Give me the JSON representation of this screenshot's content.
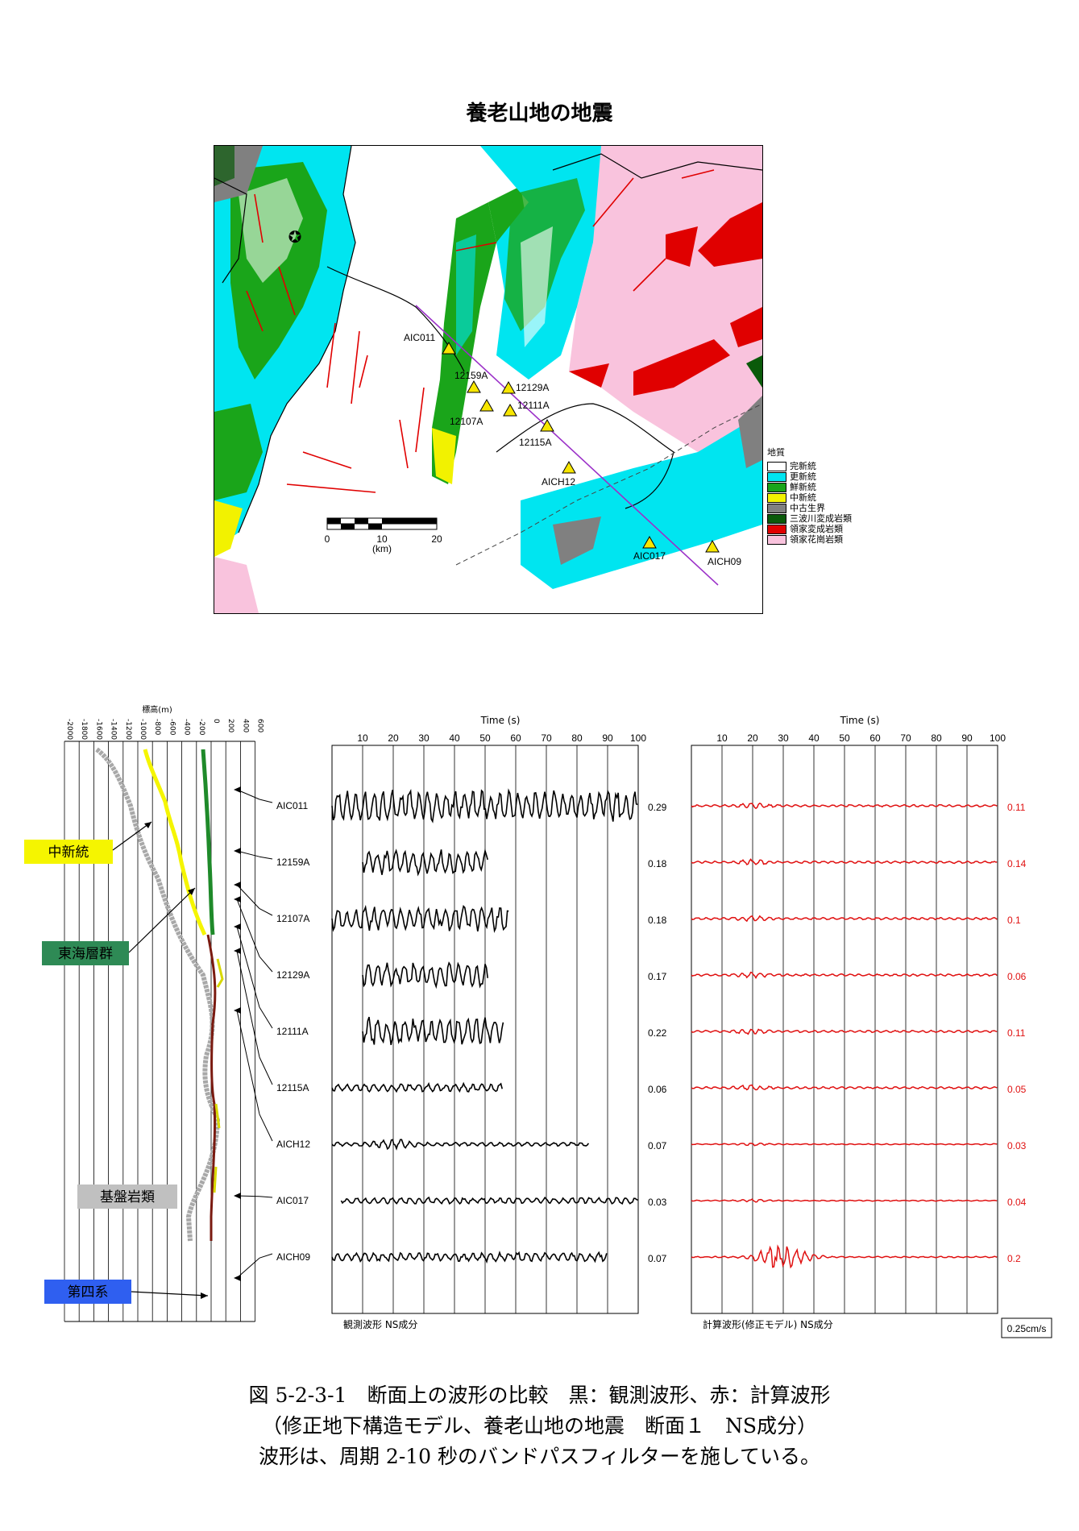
{
  "map": {
    "title": "養老山地の地震",
    "stations": [
      {
        "label": "AIC011"
      },
      {
        "label": "12159A"
      },
      {
        "label": "12129A"
      },
      {
        "label": "12111A"
      },
      {
        "label": "12107A"
      },
      {
        "label": "12115A"
      },
      {
        "label": "AICH12"
      },
      {
        "label": "AIC017"
      },
      {
        "label": "AICH09"
      }
    ],
    "scale": {
      "ticks": [
        "0",
        "10",
        "20"
      ],
      "unit": "(km)"
    },
    "legend": {
      "title": "地質",
      "items": [
        {
          "label": "完新統",
          "color": "#ffffff"
        },
        {
          "label": "更新統",
          "color": "#00e5f0"
        },
        {
          "label": "鮮新統",
          "color": "#1aa51a"
        },
        {
          "label": "中新統",
          "color": "#f2f200"
        },
        {
          "label": "中古生界",
          "color": "#808080"
        },
        {
          "label": "三波川変成岩類",
          "color": "#0a5a0a"
        },
        {
          "label": "領家変成岩類",
          "color": "#e00000"
        },
        {
          "label": "領家花崗岩類",
          "color": "#f9c3dd"
        }
      ]
    }
  },
  "profile": {
    "axis_title": "標高(m)",
    "ticks": [
      "-2000",
      "-1800",
      "-1600",
      "-1400",
      "-1200",
      "-1000",
      "-800",
      "-600",
      "-400",
      "-200",
      "0",
      "200",
      "400",
      "600"
    ],
    "layers": [
      {
        "label": "中新統",
        "color": "#f5f500"
      },
      {
        "label": "東海層群",
        "color": "#2e8a55"
      },
      {
        "label": "基盤岩類",
        "color": "#c0c0c0"
      },
      {
        "label": "第四系",
        "color": "#2f5ff0"
      }
    ]
  },
  "chart_data": [
    {
      "type": "line",
      "xlabel": "Time (s)",
      "xticks": [
        10,
        20,
        30,
        40,
        50,
        60,
        70,
        80,
        90,
        100
      ],
      "xlim": [
        0,
        100
      ],
      "caption": "観測波形 NS成分",
      "series": [
        {
          "name": "AIC011",
          "amplitude": "0.29",
          "t_start": 0,
          "t_end": 100
        },
        {
          "name": "12159A",
          "amplitude": "0.18",
          "t_start": 10,
          "t_end": 51
        },
        {
          "name": "12107A",
          "amplitude": "0.18",
          "t_start": 0,
          "t_end": 58
        },
        {
          "name": "12129A",
          "amplitude": "0.17",
          "t_start": 10,
          "t_end": 51
        },
        {
          "name": "12111A",
          "amplitude": "0.22",
          "t_start": 10,
          "t_end": 56
        },
        {
          "name": "12115A",
          "amplitude": "0.06",
          "t_start": 0,
          "t_end": 56
        },
        {
          "name": "AICH12",
          "amplitude": "0.07",
          "t_start": 0,
          "t_end": 84
        },
        {
          "name": "AIC017",
          "amplitude": "0.03",
          "t_start": 3,
          "t_end": 100
        },
        {
          "name": "AICH09",
          "amplitude": "0.07",
          "t_start": 0,
          "t_end": 90
        }
      ]
    },
    {
      "type": "line",
      "xlabel": "Time (s)",
      "xticks": [
        10,
        20,
        30,
        40,
        50,
        60,
        70,
        80,
        90,
        100
      ],
      "xlim": [
        0,
        100
      ],
      "caption": "計算波形(修正モデル) NS成分",
      "series": [
        {
          "name": "AIC011",
          "amplitude": "0.11"
        },
        {
          "name": "12159A",
          "amplitude": "0.14"
        },
        {
          "name": "12107A",
          "amplitude": "0.1"
        },
        {
          "name": "12129A",
          "amplitude": "0.06"
        },
        {
          "name": "12111A",
          "amplitude": "0.11"
        },
        {
          "name": "12115A",
          "amplitude": "0.05"
        },
        {
          "name": "AICH12",
          "amplitude": "0.03"
        },
        {
          "name": "AIC017",
          "amplitude": "0.04"
        },
        {
          "name": "AICH09",
          "amplitude": "0.2"
        }
      ],
      "scale_bar": "0.25cm/s"
    }
  ],
  "caption": {
    "line1": "図 5-2-3-1　断面上の波形の比較　黒：観測波形、赤：計算波形",
    "line2": "（修正地下構造モデル、養老山地の地震　断面１　NS成分）",
    "line3": "波形は、周期 2-10 秒のバンドパスフィルターを施している。"
  }
}
